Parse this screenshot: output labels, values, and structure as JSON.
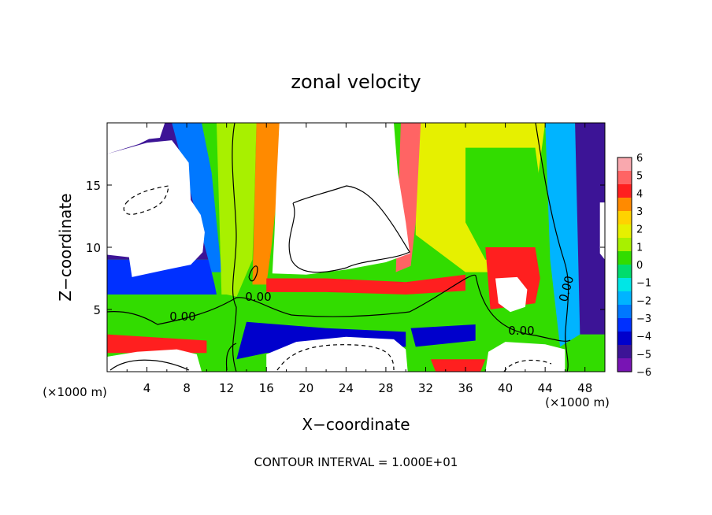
{
  "chart_data": {
    "type": "heatmap",
    "title": "zonal velocity",
    "xlabel": "X−coordinate",
    "ylabel": "Z−coordinate",
    "x_unit_left": "(×1000 m)",
    "x_unit_right": "(×1000 m)",
    "xlim": [
      0,
      50
    ],
    "ylim": [
      0,
      20
    ],
    "xticks": [
      "4",
      "8",
      "12",
      "16",
      "20",
      "24",
      "28",
      "32",
      "36",
      "40",
      "44",
      "48"
    ],
    "xtick_values": [
      4,
      8,
      12,
      16,
      20,
      24,
      28,
      32,
      36,
      40,
      44,
      48
    ],
    "yticks": [
      "5",
      "10",
      "15"
    ],
    "ytick_values": [
      5,
      10,
      15
    ],
    "colorbar": {
      "range": [
        -6,
        6
      ],
      "labels": [
        "6",
        "5",
        "4",
        "3",
        "2",
        "1",
        "0",
        "−1",
        "−2",
        "−3",
        "−4",
        "−5",
        "−6"
      ],
      "colors": [
        "#f9a8ae",
        "#ff6464",
        "#ff1f1f",
        "#ff8a00",
        "#ffd200",
        "#e6f000",
        "#a8f000",
        "#32dc00",
        "#00dc6e",
        "#00e6e6",
        "#00b4ff",
        "#0078ff",
        "#0030ff",
        "#0000cc",
        "#3c1496",
        "#7814b4"
      ]
    },
    "contour_labels": [
      "0.00",
      "0.00",
      "0.00",
      "0.00"
    ],
    "footer": "CONTOUR INTERVAL = 1.000E+01",
    "regions": [
      {
        "name": "upper-left",
        "value": -4.5,
        "points": [
          [
            0,
            20
          ],
          [
            6.5,
            20
          ],
          [
            7.5,
            18.2
          ],
          [
            9.5,
            14.5
          ],
          [
            10.5,
            12
          ],
          [
            10.5,
            9
          ],
          [
            0,
            9
          ]
        ]
      },
      {
        "name": "low-left",
        "value": -3,
        "points": [
          [
            0,
            9
          ],
          [
            10.2,
            9
          ],
          [
            10.8,
            7
          ],
          [
            11,
            6.2
          ],
          [
            0,
            6.2
          ]
        ]
      },
      {
        "name": "upper-left-mid",
        "value": -2.5,
        "points": [
          [
            6.5,
            20
          ],
          [
            9.5,
            20
          ],
          [
            10.5,
            16
          ],
          [
            11,
            12
          ],
          [
            11.5,
            8
          ],
          [
            10.5,
            8
          ]
        ]
      },
      {
        "name": "mid-band",
        "value": 1.5,
        "points": [
          [
            11,
            20
          ],
          [
            15,
            20
          ],
          [
            14.8,
            14
          ],
          [
            14.6,
            9
          ],
          [
            13,
            6
          ],
          [
            11.5,
            6
          ]
        ]
      },
      {
        "name": "orange-column",
        "value": 3.5,
        "points": [
          [
            15,
            20
          ],
          [
            17.5,
            20
          ],
          [
            17.3,
            16
          ],
          [
            16.5,
            10
          ],
          [
            16,
            7
          ],
          [
            14.6,
            7
          ]
        ]
      },
      {
        "name": "left-band",
        "value": 0.5,
        "points": [
          [
            0,
            6.2
          ],
          [
            12,
            6.2
          ],
          [
            16,
            5.5
          ],
          [
            16,
            4
          ],
          [
            0,
            4.5
          ]
        ]
      },
      {
        "name": "left-bottom-red",
        "value": 4.5,
        "points": [
          [
            0,
            3
          ],
          [
            10,
            2.5
          ],
          [
            10,
            1.5
          ],
          [
            0,
            1.5
          ]
        ]
      },
      {
        "name": "center-bottom-blue",
        "value": -4,
        "points": [
          [
            14,
            4
          ],
          [
            22,
            3.5
          ],
          [
            30,
            3.2
          ],
          [
            30,
            2
          ],
          [
            16,
            1.5
          ],
          [
            13,
            1
          ]
        ]
      },
      {
        "name": "center-ribbon",
        "value": 4,
        "points": [
          [
            16,
            7.5
          ],
          [
            22,
            7.5
          ],
          [
            30,
            7.2
          ],
          [
            36,
            7.8
          ],
          [
            36,
            6.5
          ],
          [
            30,
            6.2
          ],
          [
            22,
            6.4
          ],
          [
            16,
            6.4
          ]
        ]
      },
      {
        "name": "right-yellow",
        "value": 2,
        "points": [
          [
            31,
            20
          ],
          [
            44,
            20
          ],
          [
            43,
            14
          ],
          [
            42,
            10
          ],
          [
            41,
            8
          ],
          [
            36,
            8
          ],
          [
            31,
            11
          ]
        ]
      },
      {
        "name": "right-red",
        "value": 5,
        "points": [
          [
            29.5,
            20
          ],
          [
            31.5,
            20
          ],
          [
            31,
            12
          ],
          [
            30.5,
            8.5
          ],
          [
            29,
            8
          ]
        ]
      },
      {
        "name": "right-green",
        "value": 0.5,
        "points": [
          [
            36,
            18
          ],
          [
            43,
            18
          ],
          [
            44,
            12
          ],
          [
            43,
            9
          ],
          [
            38,
            9
          ],
          [
            36,
            12
          ]
        ]
      },
      {
        "name": "far-right-cyan",
        "value": -2,
        "points": [
          [
            44,
            20
          ],
          [
            47,
            20
          ],
          [
            47.5,
            12
          ],
          [
            47.5,
            3
          ],
          [
            45.5,
            2
          ],
          [
            44.5,
            9
          ]
        ]
      },
      {
        "name": "far-right-blue",
        "value": -4.5,
        "points": [
          [
            47,
            20
          ],
          [
            50,
            20
          ],
          [
            50,
            3
          ],
          [
            47.5,
            3
          ]
        ]
      },
      {
        "name": "right-pink",
        "value": 4.5,
        "points": [
          [
            38,
            10
          ],
          [
            43,
            10
          ],
          [
            43.5,
            7.5
          ],
          [
            43,
            5.5
          ],
          [
            38.5,
            5
          ]
        ]
      },
      {
        "name": "bottom-right-red",
        "value": 4,
        "points": [
          [
            32.5,
            1
          ],
          [
            38,
            1
          ],
          [
            37.5,
            0
          ],
          [
            33,
            0
          ]
        ]
      },
      {
        "name": "bottom-right-blue",
        "value": -4,
        "points": [
          [
            30.5,
            3.5
          ],
          [
            37,
            3.8
          ],
          [
            37,
            2.5
          ],
          [
            31,
            2
          ]
        ]
      }
    ],
    "blank_regions": [
      {
        "name": "top-left-gap",
        "points": [
          [
            0,
            20
          ],
          [
            5.8,
            20
          ],
          [
            5.3,
            18.8
          ],
          [
            4.2,
            18.7
          ],
          [
            3.2,
            18.3
          ],
          [
            0,
            17.5
          ]
        ]
      },
      {
        "name": "left-gap",
        "points": [
          [
            0,
            17.5
          ],
          [
            4,
            18.4
          ],
          [
            6.5,
            18.6
          ],
          [
            8.2,
            16.8
          ],
          [
            8.4,
            13.8
          ],
          [
            9.4,
            12.6
          ],
          [
            9.8,
            11.2
          ],
          [
            9.6,
            9.6
          ],
          [
            8.4,
            8.6
          ],
          [
            6,
            8.2
          ],
          [
            2.5,
            7.6
          ],
          [
            2.2,
            9.2
          ],
          [
            0,
            9.4
          ]
        ]
      },
      {
        "name": "center-gap",
        "points": [
          [
            17.3,
            20
          ],
          [
            28.8,
            20
          ],
          [
            29.2,
            16
          ],
          [
            30,
            12
          ],
          [
            30.4,
            9.5
          ],
          [
            28,
            8.8
          ],
          [
            24,
            8.2
          ],
          [
            20,
            7.8
          ],
          [
            16.6,
            7.9
          ],
          [
            16.8,
            11
          ],
          [
            17,
            15
          ]
        ]
      },
      {
        "name": "right-hole",
        "points": [
          [
            39,
            7.5
          ],
          [
            41.2,
            7.6
          ],
          [
            42.2,
            6.6
          ],
          [
            42,
            5.2
          ],
          [
            40.5,
            4.8
          ],
          [
            39.3,
            5.5
          ]
        ]
      },
      {
        "name": "bottom-left-gap",
        "points": [
          [
            0,
            1.2
          ],
          [
            3,
            1.6
          ],
          [
            7,
            1.8
          ],
          [
            9,
            1.4
          ],
          [
            9.5,
            0
          ],
          [
            0,
            0
          ]
        ]
      },
      {
        "name": "bottom-center-gap",
        "points": [
          [
            16,
            1.4
          ],
          [
            19,
            2.4
          ],
          [
            24,
            2.8
          ],
          [
            28.8,
            2.6
          ],
          [
            30,
            1.8
          ],
          [
            30.2,
            0
          ],
          [
            16,
            0
          ]
        ]
      },
      {
        "name": "bottom-right-gap",
        "points": [
          [
            38,
            0
          ],
          [
            38.3,
            1.6
          ],
          [
            40,
            2.4
          ],
          [
            44,
            2.2
          ],
          [
            46,
            1.8
          ],
          [
            46,
            0
          ]
        ]
      },
      {
        "name": "far-right-gap",
        "points": [
          [
            49.5,
            13.6
          ],
          [
            50,
            13.6
          ],
          [
            50,
            9
          ],
          [
            49.5,
            9.5
          ]
        ]
      }
    ]
  }
}
